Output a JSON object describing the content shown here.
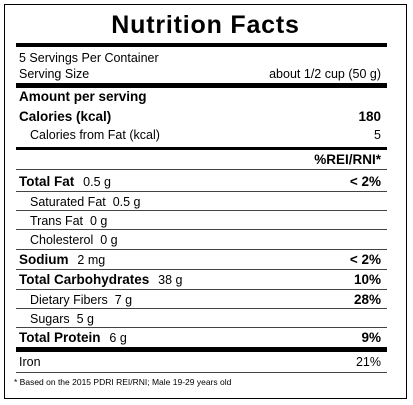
{
  "label": {
    "title": "Nutrition  Facts",
    "servings_per_container": "5 Servings Per Container",
    "serving_size_label": "Serving Size",
    "serving_size_value": "about 1/2 cup (50 g)",
    "amount_per_serving": "Amount per serving",
    "calories_label": "Calories (kcal)",
    "calories_value": "180",
    "calories_from_fat_label": "Calories from Fat (kcal)",
    "calories_from_fat_value": "5",
    "rei_header": "%REI/RNI*",
    "nutrients": [
      {
        "name": "Total Fat",
        "amount": "0.5 g",
        "percent": "< 2%"
      },
      {
        "name": "Saturated Fat",
        "amount": "0.5 g",
        "percent": ""
      },
      {
        "name": "Trans Fat",
        "amount": "0 g",
        "percent": ""
      },
      {
        "name": "Cholesterol",
        "amount": "0 g",
        "percent": ""
      },
      {
        "name": "Sodium",
        "amount": "2 mg",
        "percent": "< 2%"
      },
      {
        "name": "Total Carbohydrates",
        "amount": "38 g",
        "percent": "10%"
      },
      {
        "name": "Dietary Fibers",
        "amount": "7 g",
        "percent": "28%"
      },
      {
        "name": "Sugars",
        "amount": "5 g",
        "percent": ""
      },
      {
        "name": "Total Protein",
        "amount": "6 g",
        "percent": "9%"
      }
    ],
    "iron_label": "Iron",
    "iron_value": "21%",
    "footnote": "* Based on the 2015 PDRI REI/RNI; Male 19-29 years old"
  }
}
